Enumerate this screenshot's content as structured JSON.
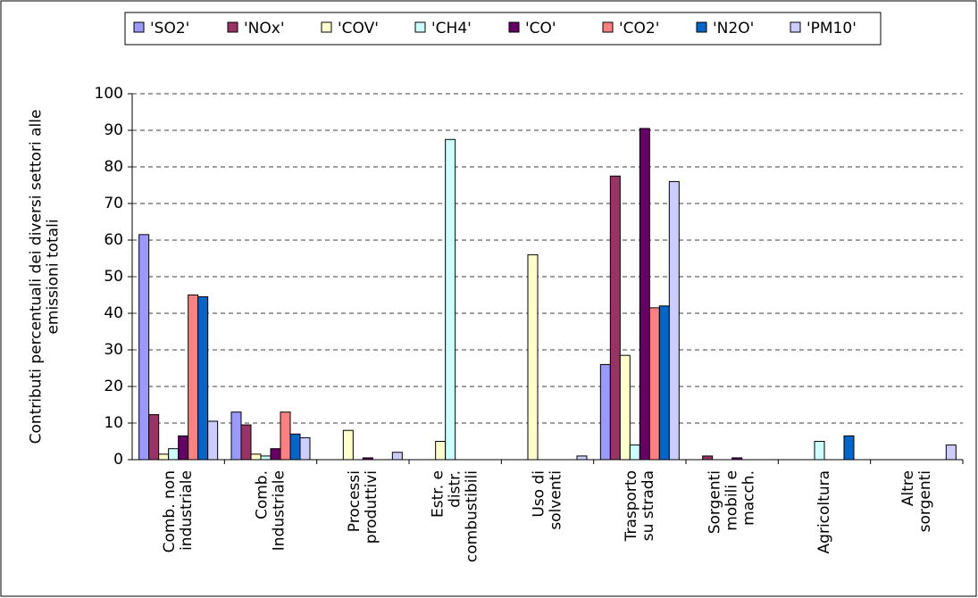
{
  "chart_data": {
    "type": "bar",
    "y_label": "Contributi percentuali dei diversi settori alle\nemissioni totali",
    "categories": [
      "Comb. non\nindustriale",
      "Comb.\nIndustriale",
      "Processi\nproduttivi",
      "Estr. e\ndistr.\ncombustibili",
      "Uso di\nsolventi",
      "Trasporto\nsu strada",
      "Sorgenti\nmobili e\nmacch.",
      "Agricoltura",
      "Altre\nsorgenti"
    ],
    "series": [
      {
        "name": "'SO2'",
        "color": "#9999ff",
        "values": [
          61.5,
          13,
          0,
          0,
          0,
          26,
          0,
          0,
          0
        ]
      },
      {
        "name": "'NOx'",
        "color": "#993366",
        "values": [
          12.3,
          9.5,
          0,
          0,
          0,
          77.5,
          1,
          0,
          0
        ]
      },
      {
        "name": "'COV'",
        "color": "#ffffcc",
        "values": [
          1.5,
          1.5,
          8,
          5,
          56,
          28.5,
          0,
          0,
          0
        ]
      },
      {
        "name": "'CH4'",
        "color": "#ccffff",
        "values": [
          3,
          1,
          0,
          87.5,
          0,
          4,
          0,
          5,
          0
        ]
      },
      {
        "name": "'CO'",
        "color": "#660066",
        "values": [
          6.5,
          3,
          0.5,
          0,
          0,
          90.5,
          0.5,
          0,
          0
        ]
      },
      {
        "name": "'CO2'",
        "color": "#ff8080",
        "values": [
          45,
          13,
          0,
          0,
          0,
          41.5,
          0,
          0,
          0
        ]
      },
      {
        "name": "'N2O'",
        "color": "#0066cc",
        "values": [
          44.5,
          7,
          0,
          0,
          0,
          42,
          0,
          6.5,
          0
        ]
      },
      {
        "name": "'PM10'",
        "color": "#ccccff",
        "values": [
          10.5,
          6,
          2,
          0,
          1,
          76,
          0,
          0,
          4
        ]
      }
    ],
    "ylim": [
      0,
      100
    ],
    "yticks": [
      0,
      10,
      20,
      30,
      40,
      50,
      60,
      70,
      80,
      90,
      100
    ],
    "grid": true
  }
}
